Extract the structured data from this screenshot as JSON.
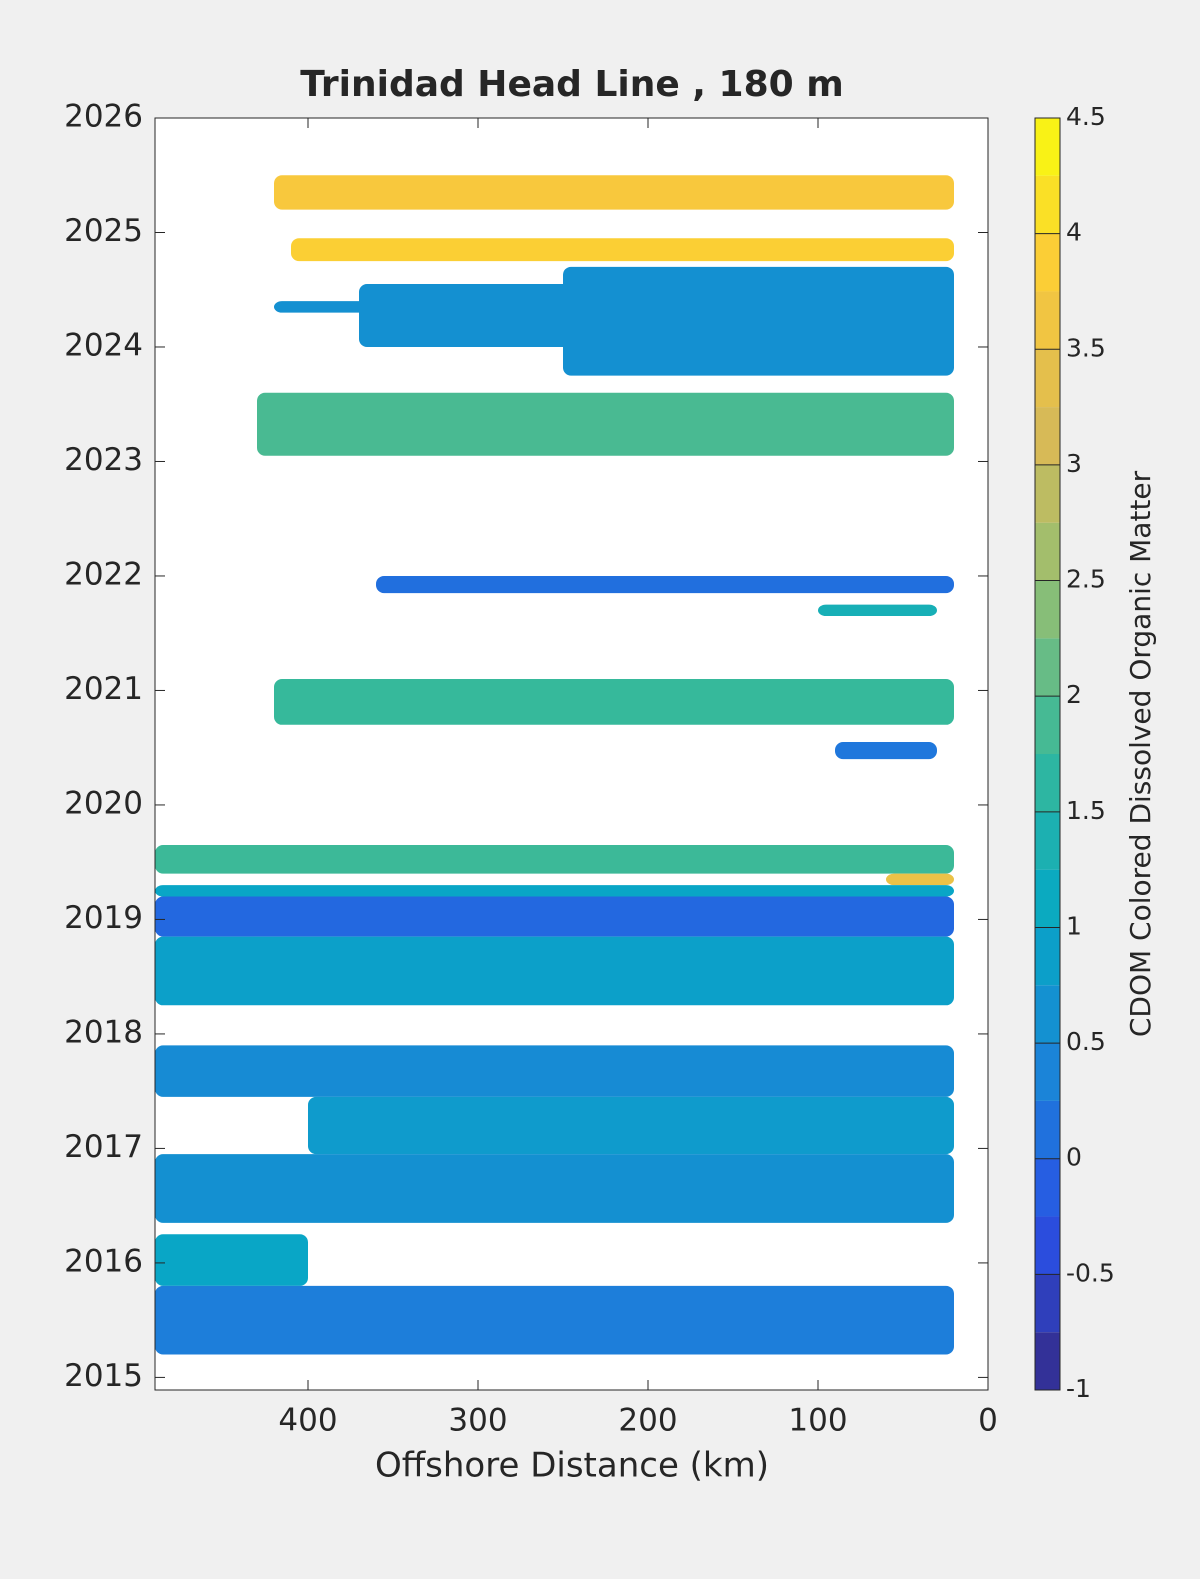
{
  "chart_data": {
    "type": "contour",
    "title": "Trinidad Head Line , 180 m",
    "x_label": "Offshore Distance (km)",
    "colorbar_label": "CDOM Colored Dissolved Organic Matter",
    "xlim": [
      490,
      0
    ],
    "xticks": [
      400,
      300,
      200,
      100,
      0
    ],
    "ylim": [
      2014.89,
      2026
    ],
    "yticks": [
      2015,
      2016,
      2017,
      2018,
      2019,
      2020,
      2021,
      2022,
      2023,
      2024,
      2025,
      2026
    ],
    "clim": [
      -1,
      4.5
    ],
    "cticks": [
      -1,
      -0.5,
      0,
      0.5,
      1,
      1.5,
      2,
      2.5,
      3,
      3.5,
      4,
      4.5
    ],
    "colormap": [
      "#352a87",
      "#2a50e6",
      "#1b84d8",
      "#07a9c4",
      "#36b99b",
      "#8fbf74",
      "#d7ba57",
      "#fbc93a",
      "#f9fb0e"
    ],
    "regions": [
      {
        "x": [
          420,
          20
        ],
        "y": [
          2025.2,
          2025.5
        ],
        "value": 3.75
      },
      {
        "x": [
          410,
          20
        ],
        "y": [
          2024.75,
          2024.95
        ],
        "value": 3.9
      },
      {
        "x": [
          420,
          20
        ],
        "y": [
          2024.3,
          2024.4
        ],
        "value": 0.6
      },
      {
        "x": [
          370,
          20
        ],
        "y": [
          2024.0,
          2024.55
        ],
        "value": 0.6
      },
      {
        "x": [
          250,
          20
        ],
        "y": [
          2023.75,
          2024.7
        ],
        "value": 0.6
      },
      {
        "x": [
          430,
          20
        ],
        "y": [
          2023.05,
          2023.6
        ],
        "value": 1.9
      },
      {
        "x": [
          360,
          20
        ],
        "y": [
          2021.85,
          2022.0
        ],
        "value": 0.1
      },
      {
        "x": [
          100,
          30
        ],
        "y": [
          2021.65,
          2021.75
        ],
        "value": 1.3
      },
      {
        "x": [
          420,
          20
        ],
        "y": [
          2020.7,
          2021.1
        ],
        "value": 1.75
      },
      {
        "x": [
          90,
          30
        ],
        "y": [
          2020.4,
          2020.55
        ],
        "value": 0.2
      },
      {
        "x": [
          490,
          20
        ],
        "y": [
          2019.4,
          2019.65
        ],
        "value": 1.8
      },
      {
        "x": [
          60,
          20
        ],
        "y": [
          2019.3,
          2019.4
        ],
        "value": 3.5
      },
      {
        "x": [
          490,
          20
        ],
        "y": [
          2019.2,
          2019.3
        ],
        "value": 1.0
      },
      {
        "x": [
          490,
          20
        ],
        "y": [
          2018.85,
          2019.2
        ],
        "value": 0.0
      },
      {
        "x": [
          490,
          20
        ],
        "y": [
          2018.25,
          2018.85
        ],
        "value": 0.9
      },
      {
        "x": [
          490,
          20
        ],
        "y": [
          2017.45,
          2017.9
        ],
        "value": 0.5
      },
      {
        "x": [
          400,
          20
        ],
        "y": [
          2016.95,
          2017.45
        ],
        "value": 0.8
      },
      {
        "x": [
          490,
          20
        ],
        "y": [
          2016.35,
          2016.95
        ],
        "value": 0.6
      },
      {
        "x": [
          490,
          400
        ],
        "y": [
          2015.8,
          2016.25
        ],
        "value": 1.0
      },
      {
        "x": [
          490,
          20
        ],
        "y": [
          2015.2,
          2015.8
        ],
        "value": 0.3
      }
    ]
  }
}
